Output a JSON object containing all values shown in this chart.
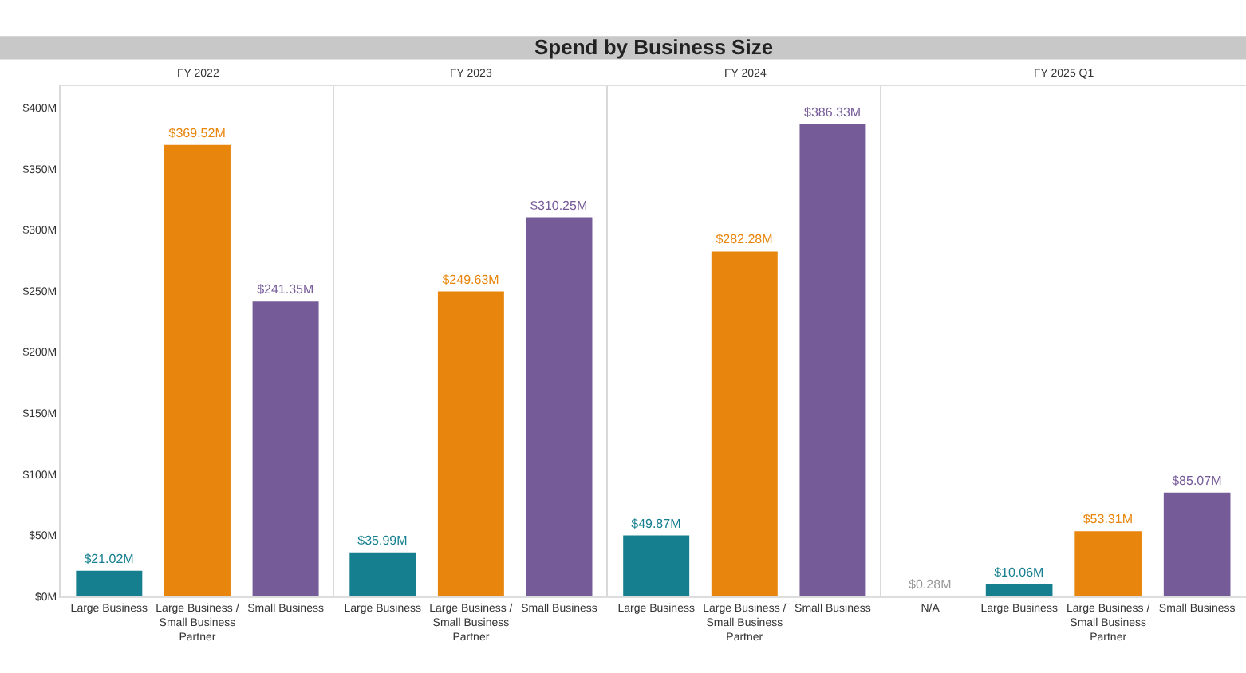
{
  "chart_data": [
    {
      "type": "other",
      "title": "Spend by Business Size"
    },
    {
      "type": "bar",
      "subtitle": "FY 2022",
      "categories": [
        "Large Business",
        "Large Business / Small Business Partner",
        "Small Business"
      ],
      "values": [
        21.02,
        369.52,
        241.35
      ],
      "colors": [
        "#157f8f",
        "#e8850c",
        "#765b99"
      ],
      "value_labels": [
        "$21.02M",
        "$369.52M",
        "$241.35M"
      ],
      "ylim": [
        0,
        418
      ],
      "yticks": [
        {
          "value": 0,
          "label": "$0M"
        },
        {
          "value": 50,
          "label": "$50M"
        },
        {
          "value": 100,
          "label": "$100M"
        },
        {
          "value": 150,
          "label": "$150M"
        },
        {
          "value": 200,
          "label": "$200M"
        },
        {
          "value": 250,
          "label": "$250M"
        },
        {
          "value": 300,
          "label": "$300M"
        },
        {
          "value": 350,
          "label": "$350M"
        },
        {
          "value": 400,
          "label": "$400M"
        }
      ],
      "grid": false
    },
    {
      "type": "bar",
      "subtitle": "FY 2023",
      "categories": [
        "Large Business",
        "Large Business / Small Business Partner",
        "Small Business"
      ],
      "values": [
        35.99,
        249.63,
        310.25
      ],
      "colors": [
        "#157f8f",
        "#e8850c",
        "#765b99"
      ],
      "value_labels": [
        "$35.99M",
        "$249.63M",
        "$310.25M"
      ],
      "ylim": [
        0,
        418
      ],
      "tick_labels": "x",
      "grid": false
    },
    {
      "type": "bar",
      "subtitle": "FY 2024",
      "categories": [
        "Large Business",
        "Large Business / Small Business Partner",
        "Small Business"
      ],
      "values": [
        49.87,
        282.28,
        386.33
      ],
      "colors": [
        "#157f8f",
        "#e8850c",
        "#765b99"
      ],
      "value_labels": [
        "$49.87M",
        "$282.28M",
        "$386.33M"
      ],
      "ylim": [
        0,
        418
      ],
      "tick_labels": "x",
      "grid": false
    },
    {
      "type": "bar",
      "subtitle": "FY 2025 Q1",
      "categories": [
        "N/A",
        "Large Business",
        "Large Business / Small Business Partner",
        "Small Business"
      ],
      "values": [
        0.28,
        10.06,
        53.31,
        85.07
      ],
      "colors": [
        "#9a9a9a",
        "#157f8f",
        "#e8850c",
        "#765b99"
      ],
      "value_labels": [
        "$0.28M",
        "$10.06M",
        "$53.31M",
        "$85.07M"
      ],
      "ylim": [
        0,
        418
      ],
      "tick_labels": "x",
      "grid": false
    }
  ]
}
